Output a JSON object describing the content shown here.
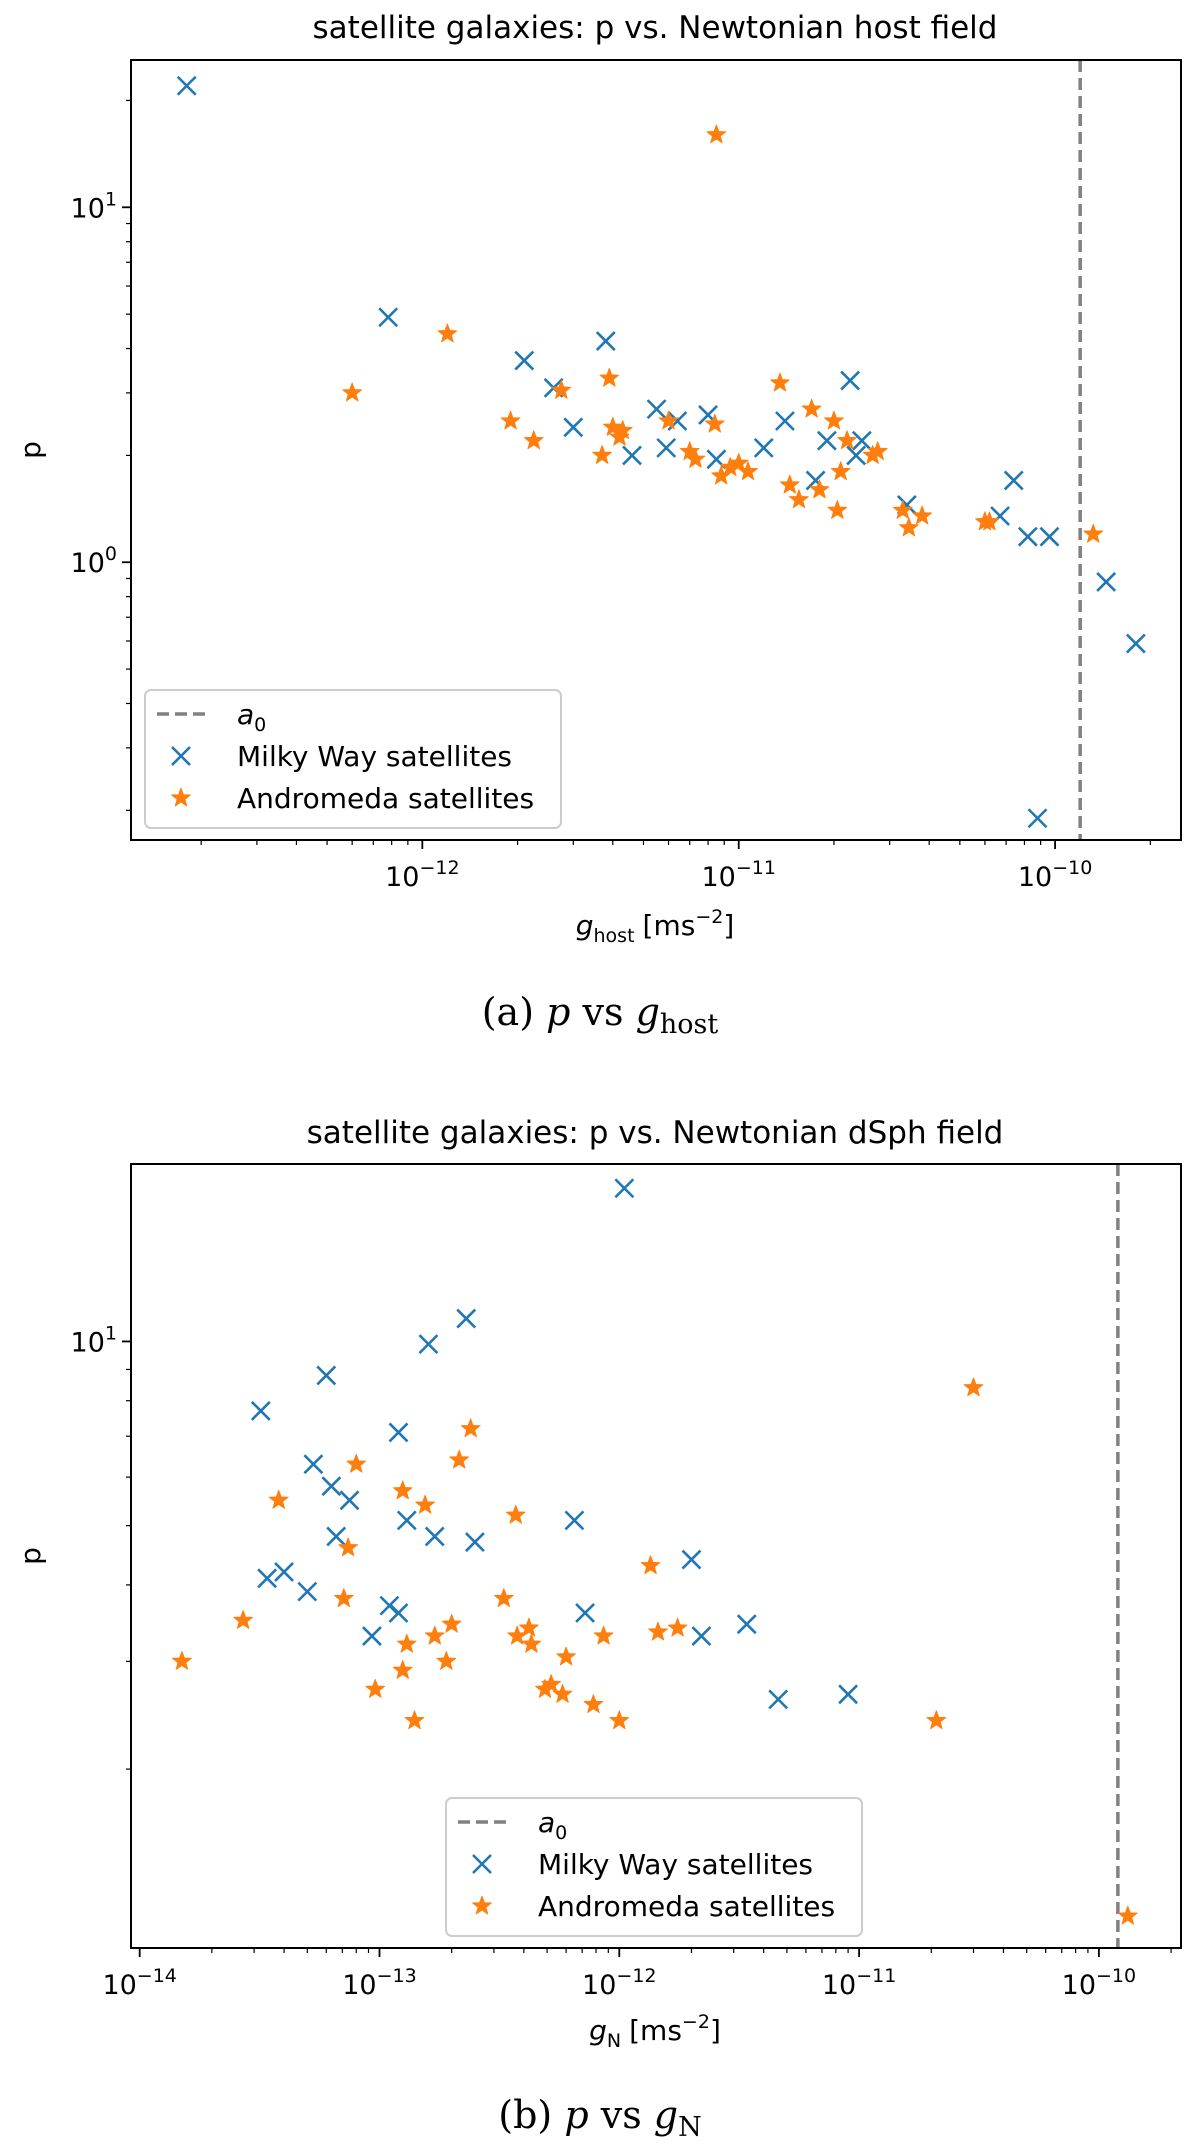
{
  "chart_data": [
    {
      "type": "scatter",
      "title": "satellite galaxies: p vs. Newtonian host field",
      "xlabel_base": "g",
      "xlabel_sub": "host",
      "xlabel_unit": "[ms",
      "xlabel_exp": "−2",
      "xlabel_close": "]",
      "ylabel": "p",
      "x_scale": "log",
      "y_scale": "log",
      "xlim": [
        1.2e-13,
        2.5e-10
      ],
      "ylim": [
        0.165,
        26
      ],
      "x_ticks": [
        {
          "value": 1e-12,
          "base": "10",
          "exp": "−12"
        },
        {
          "value": 1e-11,
          "base": "10",
          "exp": "−11"
        },
        {
          "value": 1e-10,
          "base": "10",
          "exp": "−10"
        }
      ],
      "y_ticks": [
        {
          "value": 1,
          "base": "10",
          "exp": "0"
        },
        {
          "value": 10,
          "base": "10",
          "exp": "1"
        }
      ],
      "vline": 1.2e-10,
      "caption_prefix": "(a) ",
      "caption_var": "p",
      "caption_mid": " vs ",
      "caption_var2": "g",
      "caption_sub": "host",
      "legend_position": "lower-left",
      "legend": [
        "a",
        "Milky Way satellites",
        "Andromeda satellites"
      ],
      "legend_a0_sub": "0",
      "series": [
        {
          "name": "Milky Way satellites",
          "marker": "x",
          "color": "#1f77b4",
          "points": [
            [
              1.8e-13,
              22.0
            ],
            [
              7.8e-13,
              4.9
            ],
            [
              2.1e-12,
              3.7
            ],
            [
              2.6e-12,
              3.1
            ],
            [
              3e-12,
              2.4
            ],
            [
              3.8e-12,
              4.2
            ],
            [
              4.6e-12,
              2.0
            ],
            [
              5.5e-12,
              2.7
            ],
            [
              5.9e-12,
              2.1
            ],
            [
              6.4e-12,
              2.5
            ],
            [
              8e-12,
              2.6
            ],
            [
              8.5e-12,
              1.95
            ],
            [
              1.2e-11,
              2.1
            ],
            [
              1.4e-11,
              2.5
            ],
            [
              1.75e-11,
              1.7
            ],
            [
              1.9e-11,
              2.2
            ],
            [
              2.25e-11,
              3.25
            ],
            [
              2.35e-11,
              2.0
            ],
            [
              2.45e-11,
              2.2
            ],
            [
              3.4e-11,
              1.45
            ],
            [
              6.7e-11,
              1.35
            ],
            [
              7.4e-11,
              1.7
            ],
            [
              8.2e-11,
              1.18
            ],
            [
              9.6e-11,
              1.18
            ],
            [
              8.8e-11,
              0.19
            ],
            [
              1.45e-10,
              0.88
            ],
            [
              1.8e-10,
              0.59
            ]
          ]
        },
        {
          "name": "Andromeda satellites",
          "marker": "star",
          "color": "#ff7f0e",
          "points": [
            [
              6e-13,
              3.0
            ],
            [
              1.2e-12,
              4.4
            ],
            [
              1.9e-12,
              2.5
            ],
            [
              2.25e-12,
              2.2
            ],
            [
              2.75e-12,
              3.05
            ],
            [
              3.7e-12,
              2.0
            ],
            [
              3.9e-12,
              3.3
            ],
            [
              4e-12,
              2.4
            ],
            [
              4.2e-12,
              2.25
            ],
            [
              4.3e-12,
              2.35
            ],
            [
              6e-12,
              2.5
            ],
            [
              7e-12,
              2.05
            ],
            [
              7.3e-12,
              1.95
            ],
            [
              8.4e-12,
              2.45
            ],
            [
              8.5e-12,
              16.0
            ],
            [
              8.8e-12,
              1.75
            ],
            [
              9.4e-12,
              1.85
            ],
            [
              1e-11,
              1.9
            ],
            [
              1.07e-11,
              1.8
            ],
            [
              1.35e-11,
              3.2
            ],
            [
              1.45e-11,
              1.65
            ],
            [
              1.55e-11,
              1.5
            ],
            [
              1.7e-11,
              2.7
            ],
            [
              1.8e-11,
              1.6
            ],
            [
              2e-11,
              2.5
            ],
            [
              2.05e-11,
              1.4
            ],
            [
              2.1e-11,
              1.8
            ],
            [
              2.2e-11,
              2.2
            ],
            [
              2.65e-11,
              2.0
            ],
            [
              2.75e-11,
              2.05
            ],
            [
              3.3e-11,
              1.4
            ],
            [
              3.45e-11,
              1.25
            ],
            [
              3.8e-11,
              1.35
            ],
            [
              6e-11,
              1.3
            ],
            [
              6.2e-11,
              1.3
            ],
            [
              1.32e-10,
              1.2
            ]
          ]
        }
      ]
    },
    {
      "type": "scatter",
      "title": "satellite galaxies: p vs. Newtonian dSph field",
      "xlabel_base": "g",
      "xlabel_sub": "N",
      "xlabel_unit": "[ms",
      "xlabel_exp": "−2",
      "xlabel_close": "]",
      "ylabel": "p",
      "x_scale": "log",
      "y_scale": "log",
      "xlim": [
        9.2e-15,
        2.2e-10
      ],
      "ylim": [
        1.02,
        19.5
      ],
      "x_ticks": [
        {
          "value": 1e-14,
          "base": "10",
          "exp": "−14"
        },
        {
          "value": 1e-13,
          "base": "10",
          "exp": "−13"
        },
        {
          "value": 1e-12,
          "base": "10",
          "exp": "−12"
        },
        {
          "value": 1e-11,
          "base": "10",
          "exp": "−11"
        },
        {
          "value": 1e-10,
          "base": "10",
          "exp": "−10"
        }
      ],
      "y_ticks": [
        {
          "value": 10,
          "base": "10",
          "exp": "1"
        }
      ],
      "vline": 1.2e-10,
      "caption_prefix": "(b) ",
      "caption_var": "p",
      "caption_mid": " vs ",
      "caption_var2": "g",
      "caption_sub": "N",
      "legend_position": "lower-center",
      "legend": [
        "a",
        "Milky Way satellites",
        "Andromeda satellites"
      ],
      "legend_a0_sub": "0",
      "series": [
        {
          "name": "Milky Way satellites",
          "marker": "x",
          "color": "#1f77b4",
          "points": [
            [
              3.2e-14,
              7.7
            ],
            [
              5.3e-14,
              6.3
            ],
            [
              6e-14,
              8.8
            ],
            [
              6.3e-14,
              5.8
            ],
            [
              6.6e-14,
              4.8
            ],
            [
              7.5e-14,
              5.5
            ],
            [
              1.2e-13,
              7.1
            ],
            [
              1.3e-13,
              5.1
            ],
            [
              1.6e-13,
              9.9
            ],
            [
              2.3e-13,
              10.9
            ],
            [
              3.4e-14,
              4.1
            ],
            [
              4e-14,
              4.2
            ],
            [
              5e-14,
              3.9
            ],
            [
              9.3e-14,
              3.3
            ],
            [
              1.1e-13,
              3.7
            ],
            [
              1.2e-13,
              3.6
            ],
            [
              1.7e-13,
              4.8
            ],
            [
              2.5e-13,
              4.7
            ],
            [
              6.5e-13,
              5.1
            ],
            [
              7.2e-13,
              3.6
            ],
            [
              1.05e-12,
              17.8
            ],
            [
              2e-12,
              4.4
            ],
            [
              2.2e-12,
              3.3
            ],
            [
              3.4e-12,
              3.45
            ],
            [
              4.6e-12,
              2.6
            ],
            [
              9e-12,
              2.65
            ]
          ]
        },
        {
          "name": "Andromeda satellites",
          "marker": "star",
          "color": "#ff7f0e",
          "points": [
            [
              1.5e-14,
              3.0
            ],
            [
              2.7e-14,
              3.5
            ],
            [
              3.8e-14,
              5.5
            ],
            [
              7.1e-14,
              3.8
            ],
            [
              7.4e-14,
              4.6
            ],
            [
              8e-14,
              6.3
            ],
            [
              9.6e-14,
              2.7
            ],
            [
              1.25e-13,
              2.9
            ],
            [
              1.25e-13,
              5.7
            ],
            [
              1.3e-13,
              3.2
            ],
            [
              1.4e-13,
              2.4
            ],
            [
              1.55e-13,
              5.4
            ],
            [
              1.7e-13,
              3.3
            ],
            [
              1.9e-13,
              3.0
            ],
            [
              2e-13,
              3.45
            ],
            [
              2.15e-13,
              6.4
            ],
            [
              2.4e-13,
              7.2
            ],
            [
              3.3e-13,
              3.8
            ],
            [
              3.7e-13,
              5.2
            ],
            [
              3.75e-13,
              3.3
            ],
            [
              4.2e-13,
              3.4
            ],
            [
              4.3e-13,
              3.2
            ],
            [
              4.9e-13,
              2.7
            ],
            [
              5.2e-13,
              2.75
            ],
            [
              5.8e-13,
              2.65
            ],
            [
              6e-13,
              3.05
            ],
            [
              7.8e-13,
              2.55
            ],
            [
              8.6e-13,
              3.3
            ],
            [
              1e-12,
              2.4
            ],
            [
              1.35e-12,
              4.3
            ],
            [
              1.45e-12,
              3.35
            ],
            [
              1.75e-12,
              3.4
            ],
            [
              2.1e-11,
              2.4
            ],
            [
              3e-11,
              8.4
            ],
            [
              1.32e-10,
              1.15
            ]
          ]
        }
      ]
    }
  ]
}
